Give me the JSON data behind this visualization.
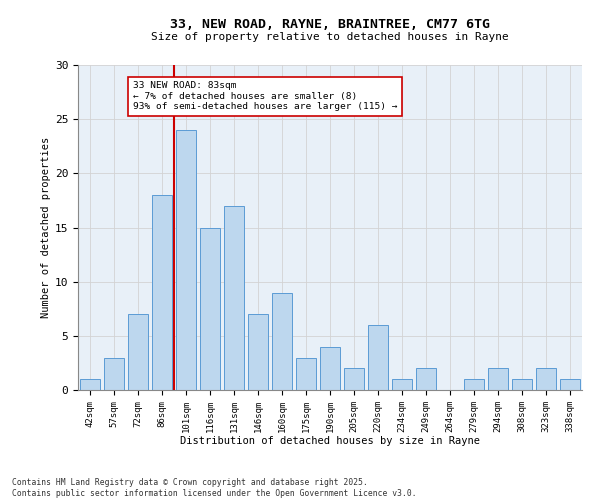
{
  "title_line1": "33, NEW ROAD, RAYNE, BRAINTREE, CM77 6TG",
  "title_line2": "Size of property relative to detached houses in Rayne",
  "xlabel": "Distribution of detached houses by size in Rayne",
  "ylabel": "Number of detached properties",
  "bar_labels": [
    "42sqm",
    "57sqm",
    "72sqm",
    "86sqm",
    "101sqm",
    "116sqm",
    "131sqm",
    "146sqm",
    "160sqm",
    "175sqm",
    "190sqm",
    "205sqm",
    "220sqm",
    "234sqm",
    "249sqm",
    "264sqm",
    "279sqm",
    "294sqm",
    "308sqm",
    "323sqm",
    "338sqm"
  ],
  "bar_values": [
    1,
    3,
    7,
    18,
    24,
    15,
    17,
    7,
    9,
    3,
    4,
    2,
    6,
    1,
    2,
    0,
    1,
    2,
    1,
    2,
    1
  ],
  "bar_color": "#BDD7EE",
  "bar_edge_color": "#5B9BD5",
  "grid_color": "#D3D3D3",
  "vline_x": 3.5,
  "vline_color": "#CC0000",
  "annotation_text": "33 NEW ROAD: 83sqm\n← 7% of detached houses are smaller (8)\n93% of semi-detached houses are larger (115) →",
  "annotation_box_edge": "#CC0000",
  "annotation_box_bg": "#FFFFFF",
  "footnote": "Contains HM Land Registry data © Crown copyright and database right 2025.\nContains public sector information licensed under the Open Government Licence v3.0.",
  "ylim": [
    0,
    30
  ],
  "yticks": [
    0,
    5,
    10,
    15,
    20,
    25,
    30
  ],
  "background_color": "#E8F0F8",
  "fig_bg_color": "#FFFFFF"
}
